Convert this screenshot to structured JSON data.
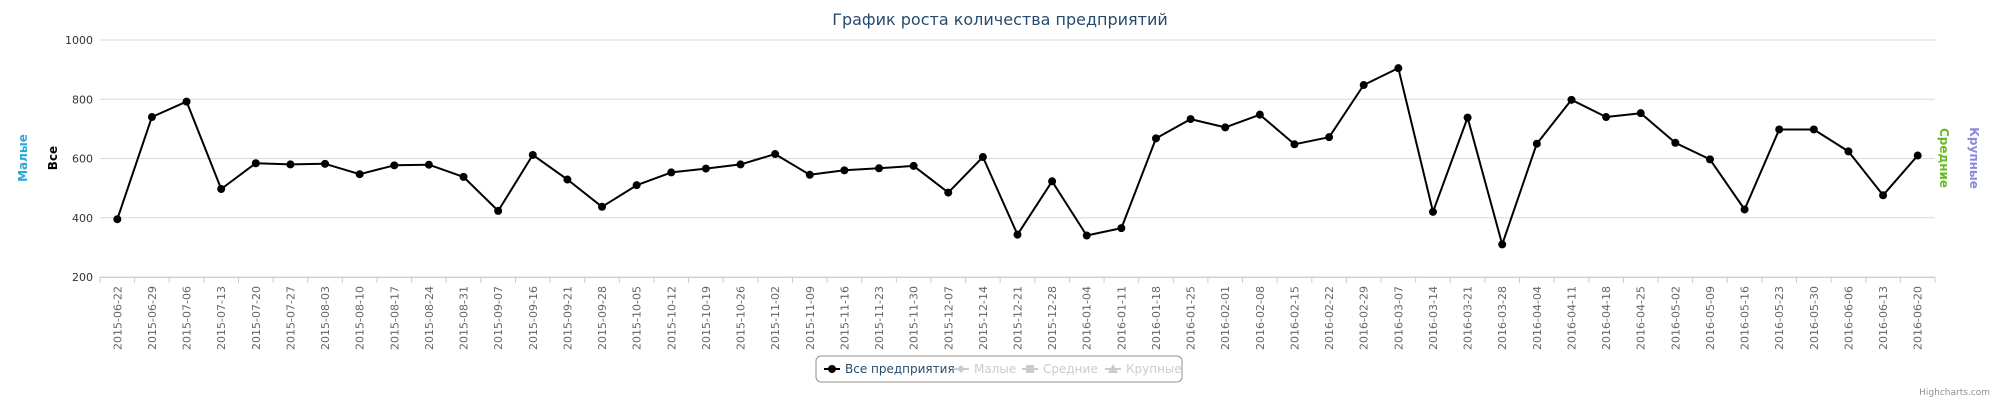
{
  "chart_data": {
    "type": "line",
    "title": "График роста количества предприятий",
    "y_axes": {
      "left": [
        {
          "title": "Малые",
          "color": "#2aa8d8"
        },
        {
          "title": "Все",
          "color": "#000000"
        }
      ],
      "right": [
        {
          "title": "Средние",
          "color": "#66bb22"
        },
        {
          "title": "Крупные",
          "color": "#8a8ad8"
        }
      ]
    },
    "ylim": [
      200,
      1000
    ],
    "yticks": [
      "200",
      "400",
      "600",
      "800",
      "1000"
    ],
    "grid": true,
    "legend_position": "bottom-center",
    "categories": [
      "2015-06-22",
      "2015-06-29",
      "2015-07-06",
      "2015-07-13",
      "2015-07-20",
      "2015-07-27",
      "2015-08-03",
      "2015-08-10",
      "2015-08-17",
      "2015-08-24",
      "2015-08-31",
      "2015-09-07",
      "2015-09-16",
      "2015-09-21",
      "2015-09-28",
      "2015-10-05",
      "2015-10-12",
      "2015-10-19",
      "2015-10-26",
      "2015-11-02",
      "2015-11-09",
      "2015-11-16",
      "2015-11-23",
      "2015-11-30",
      "2015-12-07",
      "2015-12-14",
      "2015-12-21",
      "2015-12-28",
      "2016-01-04",
      "2016-01-11",
      "2016-01-18",
      "2016-01-25",
      "2016-02-01",
      "2016-02-08",
      "2016-02-15",
      "2016-02-22",
      "2016-02-29",
      "2016-03-07",
      "2016-03-14",
      "2016-03-21",
      "2016-03-28",
      "2016-04-04",
      "2016-04-11",
      "2016-04-18",
      "2016-04-25",
      "2016-05-02",
      "2016-05-09",
      "2016-05-16",
      "2016-05-23",
      "2016-05-30",
      "2016-06-06",
      "2016-06-13",
      "2016-06-20"
    ],
    "series": [
      {
        "name": "Все предприятия",
        "color": "#000000",
        "marker": "circle",
        "visible": true,
        "values": [
          395,
          740,
          792,
          497,
          584,
          580,
          582,
          547,
          577,
          579,
          538,
          423,
          612,
          529,
          437,
          510,
          553,
          566,
          580,
          615,
          545,
          560,
          567,
          575,
          485,
          605,
          343,
          523,
          340,
          365,
          668,
          733,
          705,
          748,
          648,
          672,
          848,
          905,
          420,
          738,
          310,
          650,
          798,
          740,
          753,
          653,
          597,
          428,
          698,
          698,
          624,
          476,
          610
        ]
      },
      {
        "name": "Малые",
        "color": "#cccccc",
        "marker": "diamond",
        "visible": false
      },
      {
        "name": "Средние",
        "color": "#cccccc",
        "marker": "square",
        "visible": false
      },
      {
        "name": "Крупные",
        "color": "#cccccc",
        "marker": "triangle",
        "visible": false
      }
    ],
    "credits": "Highcharts.com"
  }
}
